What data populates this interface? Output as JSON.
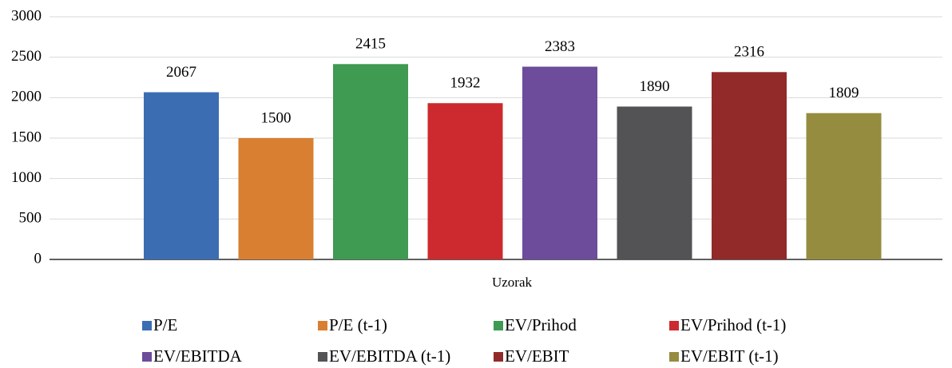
{
  "chart_data": {
    "type": "bar",
    "categories": [
      "Uzorak"
    ],
    "series": [
      {
        "name": "P/E",
        "color": "#3b6db3",
        "values": [
          2067
        ]
      },
      {
        "name": "P/E (t-1)",
        "color": "#d97f31",
        "values": [
          1500
        ]
      },
      {
        "name": "EV/Prihod",
        "color": "#3f9a52",
        "values": [
          2415
        ]
      },
      {
        "name": "EV/Prihod (t-1)",
        "color": "#cc2a2e",
        "values": [
          1932
        ]
      },
      {
        "name": "EV/EBITDA",
        "color": "#6c4c9b",
        "values": [
          2383
        ]
      },
      {
        "name": "EV/EBITDA (t-1)",
        "color": "#535254",
        "values": [
          1890
        ]
      },
      {
        "name": "EV/EBIT",
        "color": "#922a2a",
        "values": [
          2316
        ]
      },
      {
        "name": "EV/EBIT (t-1)",
        "color": "#958c3f",
        "values": [
          1809
        ]
      }
    ],
    "ylim": [
      0,
      3000
    ],
    "yticks": [
      0,
      500,
      1000,
      1500,
      2000,
      2500,
      3000
    ],
    "grid": true,
    "legend": "bottom"
  }
}
